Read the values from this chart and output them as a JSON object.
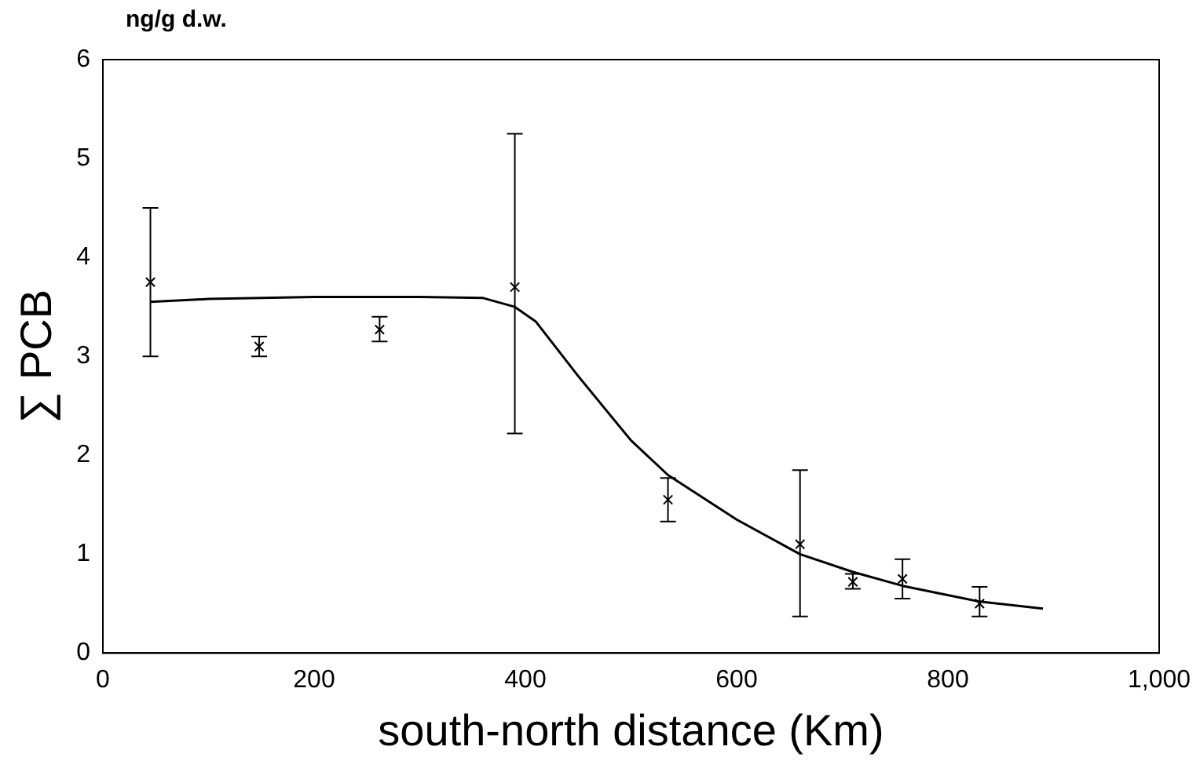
{
  "chart_data": {
    "type": "scatter",
    "xlabel": "south-north distance (Km)",
    "ylabel": "∑ PCB",
    "annotations": [
      "ng/g d.w."
    ],
    "xlim": [
      0,
      1000
    ],
    "xticks": [
      0,
      200,
      400,
      600,
      800,
      {
        "value": 1000,
        "label": "1,000"
      }
    ],
    "ylim": [
      0,
      6
    ],
    "yticks": [
      0,
      1,
      2,
      3,
      4,
      5,
      6
    ],
    "grid": false,
    "legend": false,
    "series": [
      {
        "type": "scatter",
        "color": "#000000",
        "marker": "cross",
        "x": [
          45,
          148,
          262,
          390,
          535,
          660,
          710,
          757,
          830
        ],
        "values": [
          3.75,
          3.1,
          3.27,
          3.7,
          1.55,
          1.1,
          0.72,
          0.75,
          0.5
        ],
        "errors": [
          [
            3.0,
            4.5
          ],
          [
            3.0,
            3.2
          ],
          [
            3.15,
            3.4
          ],
          [
            2.22,
            5.25
          ],
          [
            1.33,
            1.77
          ],
          [
            0.37,
            1.85
          ],
          [
            0.65,
            0.8
          ],
          [
            0.55,
            0.95
          ],
          [
            0.37,
            0.67
          ]
        ]
      },
      {
        "type": "line",
        "color": "#000000",
        "marker": "none",
        "line_style": "solid",
        "x": [
          45,
          100,
          200,
          300,
          360,
          390,
          410,
          450,
          500,
          535,
          600,
          660,
          710,
          757,
          830,
          890
        ],
        "values": [
          3.55,
          3.58,
          3.6,
          3.6,
          3.59,
          3.5,
          3.35,
          2.8,
          2.15,
          1.8,
          1.35,
          1.0,
          0.82,
          0.68,
          0.52,
          0.45
        ]
      }
    ]
  }
}
